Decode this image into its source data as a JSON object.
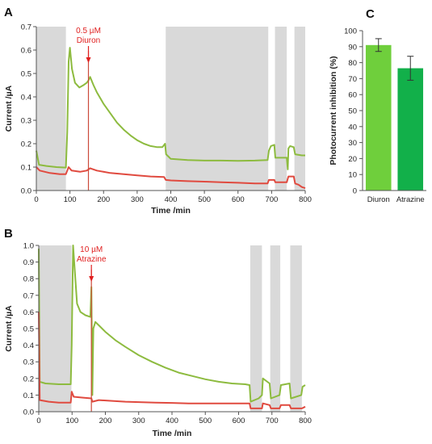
{
  "chart_data": [
    {
      "panel": "A",
      "type": "line",
      "xlabel": "Time /min",
      "ylabel": "Current /µA",
      "xlim": [
        0,
        800
      ],
      "ylim": [
        0,
        0.7
      ],
      "xticks": [
        "0",
        "100",
        "200",
        "300",
        "400",
        "500",
        "600",
        "700",
        "800"
      ],
      "yticks": [
        "0.0",
        "0.1",
        "0.2",
        "0.3",
        "0.4",
        "0.5",
        "0.6",
        "0.7"
      ],
      "dark_periods": [
        [
          0,
          88
        ],
        [
          385,
          690
        ],
        [
          710,
          745
        ],
        [
          768,
          800
        ]
      ],
      "annotation": {
        "line1": "0.5 µM",
        "line2": "Diuron",
        "x": 155
      },
      "colors": {
        "green": "#8dbb3f",
        "red": "#e04a3f",
        "shade": "#d9d9d9"
      },
      "series": [
        {
          "color": "green",
          "points": [
            [
              0,
              0.17
            ],
            [
              8,
              0.11
            ],
            [
              30,
              0.105
            ],
            [
              60,
              0.1
            ],
            [
              88,
              0.098
            ],
            [
              92,
              0.25
            ],
            [
              96,
              0.55
            ],
            [
              100,
              0.61
            ],
            [
              106,
              0.52
            ],
            [
              115,
              0.46
            ],
            [
              128,
              0.44
            ],
            [
              140,
              0.45
            ],
            [
              150,
              0.46
            ],
            [
              155,
              0.47
            ],
            [
              160,
              0.485
            ],
            [
              170,
              0.45
            ],
            [
              180,
              0.42
            ],
            [
              200,
              0.37
            ],
            [
              220,
              0.33
            ],
            [
              240,
              0.29
            ],
            [
              260,
              0.26
            ],
            [
              280,
              0.235
            ],
            [
              300,
              0.215
            ],
            [
              320,
              0.2
            ],
            [
              340,
              0.19
            ],
            [
              360,
              0.185
            ],
            [
              375,
              0.185
            ],
            [
              383,
              0.2
            ],
            [
              386,
              0.155
            ],
            [
              400,
              0.135
            ],
            [
              450,
              0.13
            ],
            [
              500,
              0.128
            ],
            [
              550,
              0.128
            ],
            [
              600,
              0.127
            ],
            [
              650,
              0.128
            ],
            [
              688,
              0.13
            ],
            [
              692,
              0.17
            ],
            [
              698,
              0.19
            ],
            [
              708,
              0.195
            ],
            [
              711,
              0.14
            ],
            [
              745,
              0.14
            ],
            [
              748,
              0.09
            ],
            [
              750,
              0.18
            ],
            [
              755,
              0.19
            ],
            [
              766,
              0.185
            ],
            [
              770,
              0.155
            ],
            [
              790,
              0.15
            ],
            [
              800,
              0.15
            ]
          ]
        },
        {
          "color": "red",
          "points": [
            [
              0,
              0.1
            ],
            [
              10,
              0.085
            ],
            [
              40,
              0.075
            ],
            [
              70,
              0.07
            ],
            [
              88,
              0.07
            ],
            [
              92,
              0.085
            ],
            [
              96,
              0.1
            ],
            [
              105,
              0.085
            ],
            [
              130,
              0.08
            ],
            [
              150,
              0.085
            ],
            [
              155,
              0.09
            ],
            [
              160,
              0.095
            ],
            [
              180,
              0.085
            ],
            [
              220,
              0.075
            ],
            [
              260,
              0.07
            ],
            [
              300,
              0.065
            ],
            [
              340,
              0.06
            ],
            [
              380,
              0.058
            ],
            [
              385,
              0.045
            ],
            [
              400,
              0.043
            ],
            [
              450,
              0.04
            ],
            [
              500,
              0.038
            ],
            [
              550,
              0.035
            ],
            [
              600,
              0.033
            ],
            [
              650,
              0.03
            ],
            [
              688,
              0.03
            ],
            [
              692,
              0.045
            ],
            [
              708,
              0.045
            ],
            [
              711,
              0.035
            ],
            [
              745,
              0.035
            ],
            [
              750,
              0.06
            ],
            [
              766,
              0.06
            ],
            [
              770,
              0.03
            ],
            [
              780,
              0.025
            ],
            [
              790,
              0.015
            ],
            [
              800,
              0.01
            ]
          ]
        }
      ]
    },
    {
      "panel": "B",
      "type": "line",
      "xlabel": "Time /min",
      "ylabel": "Current /µA",
      "xlim": [
        0,
        800
      ],
      "ylim": [
        0,
        1.0
      ],
      "xticks": [
        "0",
        "100",
        "200",
        "300",
        "400",
        "500",
        "600",
        "700",
        "800"
      ],
      "yticks": [
        "0.0",
        "0.1",
        "0.2",
        "0.3",
        "0.4",
        "0.5",
        "0.6",
        "0.7",
        "0.8",
        "0.9",
        "1.0"
      ],
      "dark_periods": [
        [
          0,
          98
        ],
        [
          635,
          670
        ],
        [
          695,
          725
        ],
        [
          755,
          790
        ]
      ],
      "annotation": {
        "line1": "10 µM",
        "line2": "Atrazine",
        "x": 158
      },
      "colors": {
        "green": "#8dbb3f",
        "red": "#e04a3f",
        "shade": "#d9d9d9"
      },
      "series": [
        {
          "color": "green",
          "points": [
            [
              0,
              0.98
            ],
            [
              3,
              0.18
            ],
            [
              20,
              0.17
            ],
            [
              60,
              0.165
            ],
            [
              96,
              0.165
            ],
            [
              99,
              0.4
            ],
            [
              103,
              1.0
            ],
            [
              108,
              0.85
            ],
            [
              115,
              0.65
            ],
            [
              125,
              0.6
            ],
            [
              140,
              0.58
            ],
            [
              155,
              0.57
            ],
            [
              158,
              0.75
            ],
            [
              161,
              0.1
            ],
            [
              164,
              0.5
            ],
            [
              170,
              0.54
            ],
            [
              180,
              0.52
            ],
            [
              200,
              0.48
            ],
            [
              230,
              0.43
            ],
            [
              260,
              0.39
            ],
            [
              300,
              0.34
            ],
            [
              340,
              0.3
            ],
            [
              380,
              0.265
            ],
            [
              420,
              0.235
            ],
            [
              460,
              0.215
            ],
            [
              500,
              0.195
            ],
            [
              540,
              0.18
            ],
            [
              580,
              0.17
            ],
            [
              620,
              0.165
            ],
            [
              633,
              0.16
            ],
            [
              636,
              0.06
            ],
            [
              660,
              0.08
            ],
            [
              670,
              0.1
            ],
            [
              673,
              0.2
            ],
            [
              693,
              0.17
            ],
            [
              697,
              0.08
            ],
            [
              723,
              0.1
            ],
            [
              727,
              0.16
            ],
            [
              753,
              0.17
            ],
            [
              757,
              0.08
            ],
            [
              788,
              0.1
            ],
            [
              792,
              0.15
            ],
            [
              800,
              0.16
            ]
          ]
        },
        {
          "color": "red",
          "points": [
            [
              0,
              0.6
            ],
            [
              3,
              0.07
            ],
            [
              30,
              0.06
            ],
            [
              60,
              0.055
            ],
            [
              96,
              0.055
            ],
            [
              99,
              0.12
            ],
            [
              105,
              0.09
            ],
            [
              130,
              0.085
            ],
            [
              158,
              0.08
            ],
            [
              161,
              0.06
            ],
            [
              180,
              0.07
            ],
            [
              220,
              0.065
            ],
            [
              260,
              0.06
            ],
            [
              300,
              0.058
            ],
            [
              350,
              0.055
            ],
            [
              400,
              0.053
            ],
            [
              450,
              0.05
            ],
            [
              500,
              0.05
            ],
            [
              550,
              0.05
            ],
            [
              600,
              0.05
            ],
            [
              633,
              0.05
            ],
            [
              636,
              0.02
            ],
            [
              670,
              0.02
            ],
            [
              673,
              0.05
            ],
            [
              693,
              0.04
            ],
            [
              697,
              0.02
            ],
            [
              723,
              0.02
            ],
            [
              727,
              0.04
            ],
            [
              753,
              0.04
            ],
            [
              757,
              0.02
            ],
            [
              790,
              0.02
            ],
            [
              800,
              0.03
            ]
          ]
        }
      ]
    },
    {
      "panel": "C",
      "type": "bar",
      "ylabel": "Photocurrent inhibition (%)",
      "ylim": [
        0,
        100
      ],
      "yticks": [
        "0",
        "10",
        "20",
        "30",
        "40",
        "50",
        "60",
        "70",
        "80",
        "90",
        "100"
      ],
      "categories": [
        "Diuron",
        "Atrazine"
      ],
      "values": [
        91,
        76.5
      ],
      "errors": [
        4,
        7.5
      ],
      "colors": [
        "#6fcf3c",
        "#12b04a"
      ]
    }
  ]
}
